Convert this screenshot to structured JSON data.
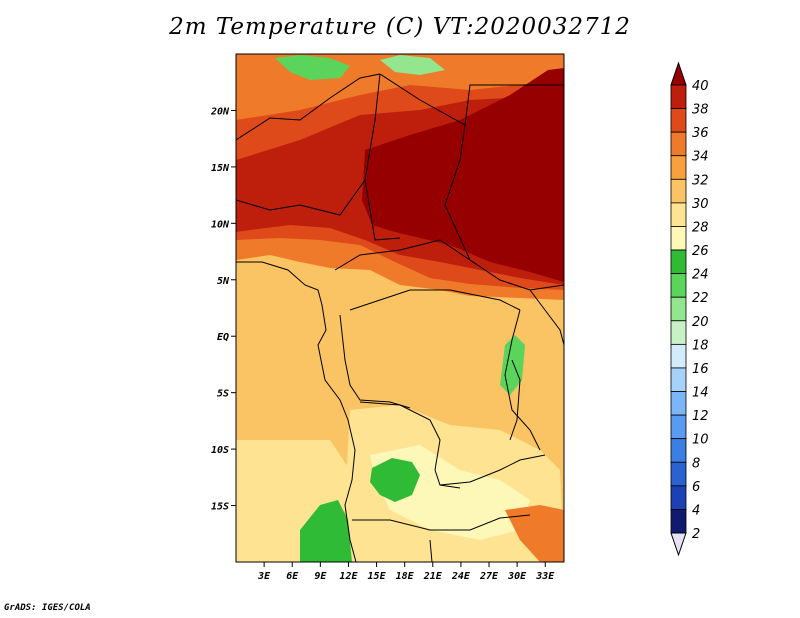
{
  "title": "2m Temperature (C) VT:2020032712",
  "credit": "GrADS: IGES/COLA",
  "map": {
    "lon_range": [
      0,
      35
    ],
    "lat_range": [
      -20,
      25
    ],
    "x_ticks": [
      "3E",
      "6E",
      "9E",
      "12E",
      "15E",
      "18E",
      "21E",
      "24E",
      "27E",
      "30E",
      "33E"
    ],
    "x_tick_values": [
      3,
      6,
      9,
      12,
      15,
      18,
      21,
      24,
      27,
      30,
      33
    ],
    "y_ticks": [
      "20N",
      "15N",
      "10N",
      "5N",
      "EQ",
      "5S",
      "10S",
      "15S"
    ],
    "y_tick_values": [
      20,
      15,
      10,
      5,
      0,
      -5,
      -10,
      -15
    ]
  },
  "colorbar": {
    "levels": [
      "2",
      "4",
      "6",
      "8",
      "10",
      "12",
      "14",
      "16",
      "18",
      "20",
      "22",
      "24",
      "26",
      "28",
      "30",
      "32",
      "34",
      "36",
      "38",
      "40"
    ],
    "colors": [
      "#101a6e",
      "#1c40b6",
      "#2a62cf",
      "#3c7fe4",
      "#5a9af0",
      "#7cb6f6",
      "#a6d2fa",
      "#d2ecfc",
      "#c6f2c4",
      "#94e68e",
      "#5ad45a",
      "#30bb36",
      "#fdf7b8",
      "#fde392",
      "#fac464",
      "#f7a03e",
      "#ef7a2a",
      "#df4a1a",
      "#bd1f0c",
      "#960000"
    ],
    "under_color": "#e6e2f6",
    "over_color": "#960000"
  }
}
